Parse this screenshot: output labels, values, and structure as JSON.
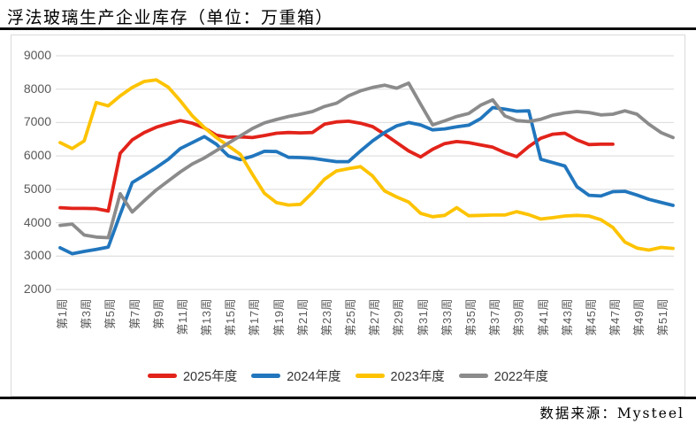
{
  "page": {
    "title": "浮法玻璃生产企业库存（单位：万重箱）",
    "source_label": "数据来源：Mysteel"
  },
  "chart_data": {
    "type": "line",
    "title": "浮法玻璃生产企业库存（单位：万重箱）",
    "unit": "万重箱",
    "grid": "horizontal",
    "legend_position": "bottom",
    "x_axis": {
      "weeks_total": 52,
      "tick_labels": [
        "第1周",
        "第3周",
        "第5周",
        "第7周",
        "第9周",
        "第11周",
        "第13周",
        "第15周",
        "第17周",
        "第19周",
        "第21周",
        "第23周",
        "第25周",
        "第27周",
        "第29周",
        "第31周",
        "第33周",
        "第35周",
        "第37周",
        "第39周",
        "第41周",
        "第43周",
        "第45周",
        "第47周",
        "第49周",
        "第51周"
      ]
    },
    "y_axis": {
      "min": 2000,
      "max": 9000,
      "tick_step": 1000,
      "tick_labels": [
        "2000",
        "3000",
        "4000",
        "5000",
        "6000",
        "7000",
        "8000",
        "9000"
      ]
    },
    "series": [
      {
        "name": "2025年度",
        "color": "#e2231a",
        "start_week": 1,
        "values": [
          4450,
          4430,
          4430,
          4420,
          4350,
          6080,
          6480,
          6700,
          6860,
          6970,
          7060,
          6980,
          6840,
          6620,
          6560,
          6570,
          6550,
          6610,
          6680,
          6700,
          6690,
          6700,
          6950,
          7020,
          7040,
          6980,
          6880,
          6650,
          6400,
          6150,
          5970,
          6200,
          6370,
          6430,
          6400,
          6330,
          6260,
          6100,
          5980,
          6280,
          6530,
          6650,
          6680,
          6480,
          6340,
          6350,
          6350
        ]
      },
      {
        "name": "2024年度",
        "color": "#2176bd",
        "start_week": 1,
        "values": [
          3250,
          3070,
          3140,
          3200,
          3270,
          4250,
          5200,
          5420,
          5650,
          5900,
          6220,
          6400,
          6580,
          6350,
          6000,
          5890,
          5990,
          6140,
          6130,
          5960,
          5950,
          5930,
          5880,
          5830,
          5830,
          6150,
          6450,
          6700,
          6900,
          7000,
          6930,
          6780,
          6810,
          6870,
          6920,
          7120,
          7450,
          7400,
          7340,
          7350,
          5900,
          5800,
          5700,
          5080,
          4820,
          4800,
          4930,
          4940,
          4830,
          4700,
          4610,
          4520
        ]
      },
      {
        "name": "2023年度",
        "color": "#fdc301",
        "start_week": 1,
        "values": [
          6400,
          6220,
          6450,
          7600,
          7500,
          7800,
          8050,
          8230,
          8280,
          8060,
          7650,
          7200,
          6850,
          6550,
          6300,
          6050,
          5450,
          4880,
          4600,
          4530,
          4550,
          4900,
          5300,
          5550,
          5620,
          5680,
          5400,
          4950,
          4770,
          4620,
          4280,
          4180,
          4220,
          4450,
          4210,
          4220,
          4230,
          4230,
          4330,
          4240,
          4110,
          4150,
          4200,
          4220,
          4200,
          4090,
          3860,
          3420,
          3240,
          3180,
          3260,
          3230
        ]
      },
      {
        "name": "2022年度",
        "color": "#8b8b8b",
        "start_week": 1,
        "values": [
          3920,
          3960,
          3630,
          3570,
          3550,
          4870,
          4320,
          4660,
          4980,
          5250,
          5520,
          5760,
          5940,
          6160,
          6380,
          6600,
          6820,
          6990,
          7090,
          7180,
          7250,
          7330,
          7480,
          7580,
          7800,
          7950,
          8050,
          8120,
          8030,
          8180,
          7550,
          6930,
          7050,
          7180,
          7270,
          7520,
          7680,
          7200,
          7060,
          7030,
          7100,
          7220,
          7290,
          7330,
          7300,
          7230,
          7250,
          7350,
          7250,
          6950,
          6700,
          6550
        ]
      }
    ]
  }
}
